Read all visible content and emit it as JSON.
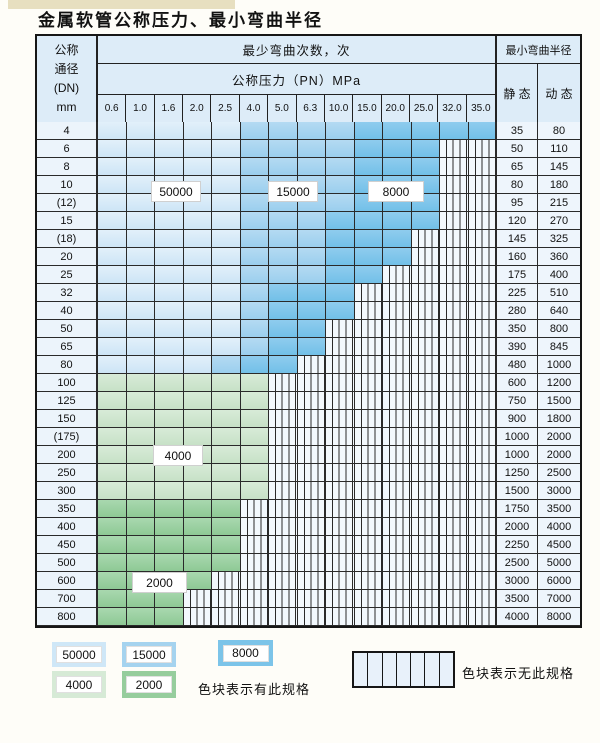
{
  "title": "金属软管公称压力、最小弯曲半径",
  "table": {
    "header": {
      "dn": [
        "公称",
        "通径",
        "(DN)",
        "mm"
      ],
      "bend_cycles": "最少弯曲次数，次",
      "pressure": "公称压力（PN）MPa",
      "pressure_cols": [
        "0.6",
        "1.0",
        "1.6",
        "2.0",
        "2.5",
        "4.0",
        "5.0",
        "6.3",
        "10.0",
        "15.0",
        "20.0",
        "25.0",
        "32.0",
        "35.0"
      ],
      "radius": "最小弯曲半径",
      "static": "静 态",
      "dynamic": "动 态"
    },
    "cell_codes": {
      "L": "50000次区域",
      "M": "15000次区域",
      "D": "8000次区域",
      "F": "4000次区域",
      "T": "2000次区域",
      "S": "无此规格"
    },
    "rows": [
      {
        "dn": "4",
        "cells": "LLLLLMMMMDDDDD",
        "static": "35",
        "dynamic": "80"
      },
      {
        "dn": "6",
        "cells": "LLLLLMMMMDDDSS",
        "static": "50",
        "dynamic": "110"
      },
      {
        "dn": "8",
        "cells": "LLLLLMMMMDDDSS",
        "static": "65",
        "dynamic": "145"
      },
      {
        "dn": "10",
        "cells": "LLLLLMMMMDDDSS",
        "static": "80",
        "dynamic": "180"
      },
      {
        "dn": "(12)",
        "cells": "LLLLLMMMMDDDSS",
        "static": "95",
        "dynamic": "215"
      },
      {
        "dn": "15",
        "cells": "LLLLLMMMDDDDSS",
        "static": "120",
        "dynamic": "270"
      },
      {
        "dn": "(18)",
        "cells": "LLLLLMMMDDDSSS",
        "static": "145",
        "dynamic": "325"
      },
      {
        "dn": "20",
        "cells": "LLLLLMMMDDDSSS",
        "static": "160",
        "dynamic": "360"
      },
      {
        "dn": "25",
        "cells": "LLLLLMMMDDSSSS",
        "static": "175",
        "dynamic": "400"
      },
      {
        "dn": "32",
        "cells": "LLLLLMDDDSSSSS",
        "static": "225",
        "dynamic": "510"
      },
      {
        "dn": "40",
        "cells": "LLLLLMDDDSSSSS",
        "static": "280",
        "dynamic": "640"
      },
      {
        "dn": "50",
        "cells": "LLLLLMDDSSSSSS",
        "static": "350",
        "dynamic": "800"
      },
      {
        "dn": "65",
        "cells": "LLLLLMDDSSSSSS",
        "static": "390",
        "dynamic": "845"
      },
      {
        "dn": "80",
        "cells": "LLLLMDDSSSSSSS",
        "static": "480",
        "dynamic": "1000"
      },
      {
        "dn": "100",
        "cells": "FFFFFFSSSSSSSS",
        "static": "600",
        "dynamic": "1200"
      },
      {
        "dn": "125",
        "cells": "FFFFFFSSSSSSSS",
        "static": "750",
        "dynamic": "1500"
      },
      {
        "dn": "150",
        "cells": "FFFFFFSSSSSSSS",
        "static": "900",
        "dynamic": "1800"
      },
      {
        "dn": "(175)",
        "cells": "FFFFFFSSSSSSSS",
        "static": "1000",
        "dynamic": "2000"
      },
      {
        "dn": "200",
        "cells": "FFFFFFSSSSSSSS",
        "static": "1000",
        "dynamic": "2000"
      },
      {
        "dn": "250",
        "cells": "FFFFFFSSSSSSSS",
        "static": "1250",
        "dynamic": "2500"
      },
      {
        "dn": "300",
        "cells": "FFFFFFSSSSSSSS",
        "static": "1500",
        "dynamic": "3000"
      },
      {
        "dn": "350",
        "cells": "TTTTTSSSSSSSSS",
        "static": "1750",
        "dynamic": "3500"
      },
      {
        "dn": "400",
        "cells": "TTTTTSSSSSSSSS",
        "static": "2000",
        "dynamic": "4000"
      },
      {
        "dn": "450",
        "cells": "TTTTTSSSSSSSSS",
        "static": "2250",
        "dynamic": "4500"
      },
      {
        "dn": "500",
        "cells": "TTTTTSSSSSSSSS",
        "static": "2500",
        "dynamic": "5000"
      },
      {
        "dn": "600",
        "cells": "TTTTSSSSSSSSSS",
        "static": "3000",
        "dynamic": "6000"
      },
      {
        "dn": "700",
        "cells": "TTTSSSSSSSSSSS",
        "static": "3500",
        "dynamic": "7000"
      },
      {
        "dn": "800",
        "cells": "TTTSSSSSSSSSSS",
        "static": "4000",
        "dynamic": "8000"
      }
    ],
    "overlay_labels": [
      {
        "label": "50000"
      },
      {
        "label": "15000"
      },
      {
        "label": "8000"
      },
      {
        "label": "4000"
      },
      {
        "label": "2000"
      }
    ]
  },
  "legend": {
    "swatches": [
      {
        "value": "50000",
        "color": "#cfe7f7"
      },
      {
        "value": "15000",
        "color": "#a5d3ef"
      },
      {
        "value": "8000",
        "color": "#7cc4e9"
      },
      {
        "value": "4000",
        "color": "#d6ead6"
      },
      {
        "value": "2000",
        "color": "#96cd9d"
      }
    ],
    "has_spec_text": "色块表示有此规格",
    "no_spec_text": "色块表示无此规格",
    "stripe_color": "#e8f1fa"
  }
}
